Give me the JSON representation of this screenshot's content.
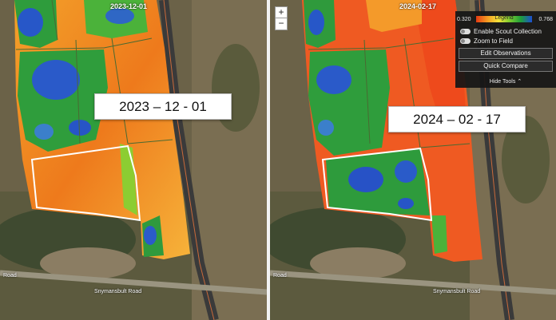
{
  "left_panel": {
    "date_tag": "2023-12-01",
    "big_label": "2023 – 12 - 01",
    "road_label": "Snymansbult Road",
    "road_label_left": "Road"
  },
  "right_panel": {
    "date_tag": "2024-02-17",
    "big_label": "2024 – 02 - 17",
    "road_label": "Snymansbult Road",
    "road_label_left": "Road",
    "zoom_in": "+",
    "zoom_out": "−"
  },
  "tools_panel": {
    "legend_title": "Legend",
    "legend_min": "0.320",
    "legend_max": "0.768",
    "toggles": [
      "Enable Scout Collection",
      "Zoom to Field"
    ],
    "buttons": [
      "Edit Observations",
      "Quick Compare"
    ],
    "hide_label": "Hide Tools",
    "hide_icon": "chevron-up-icon"
  },
  "colors": {
    "low_index": "#e53a12",
    "mid_index": "#f5e33a",
    "high_green": "#1e9e3a",
    "high_blue": "#1e4fd0",
    "field_outline": "#ffffff"
  }
}
